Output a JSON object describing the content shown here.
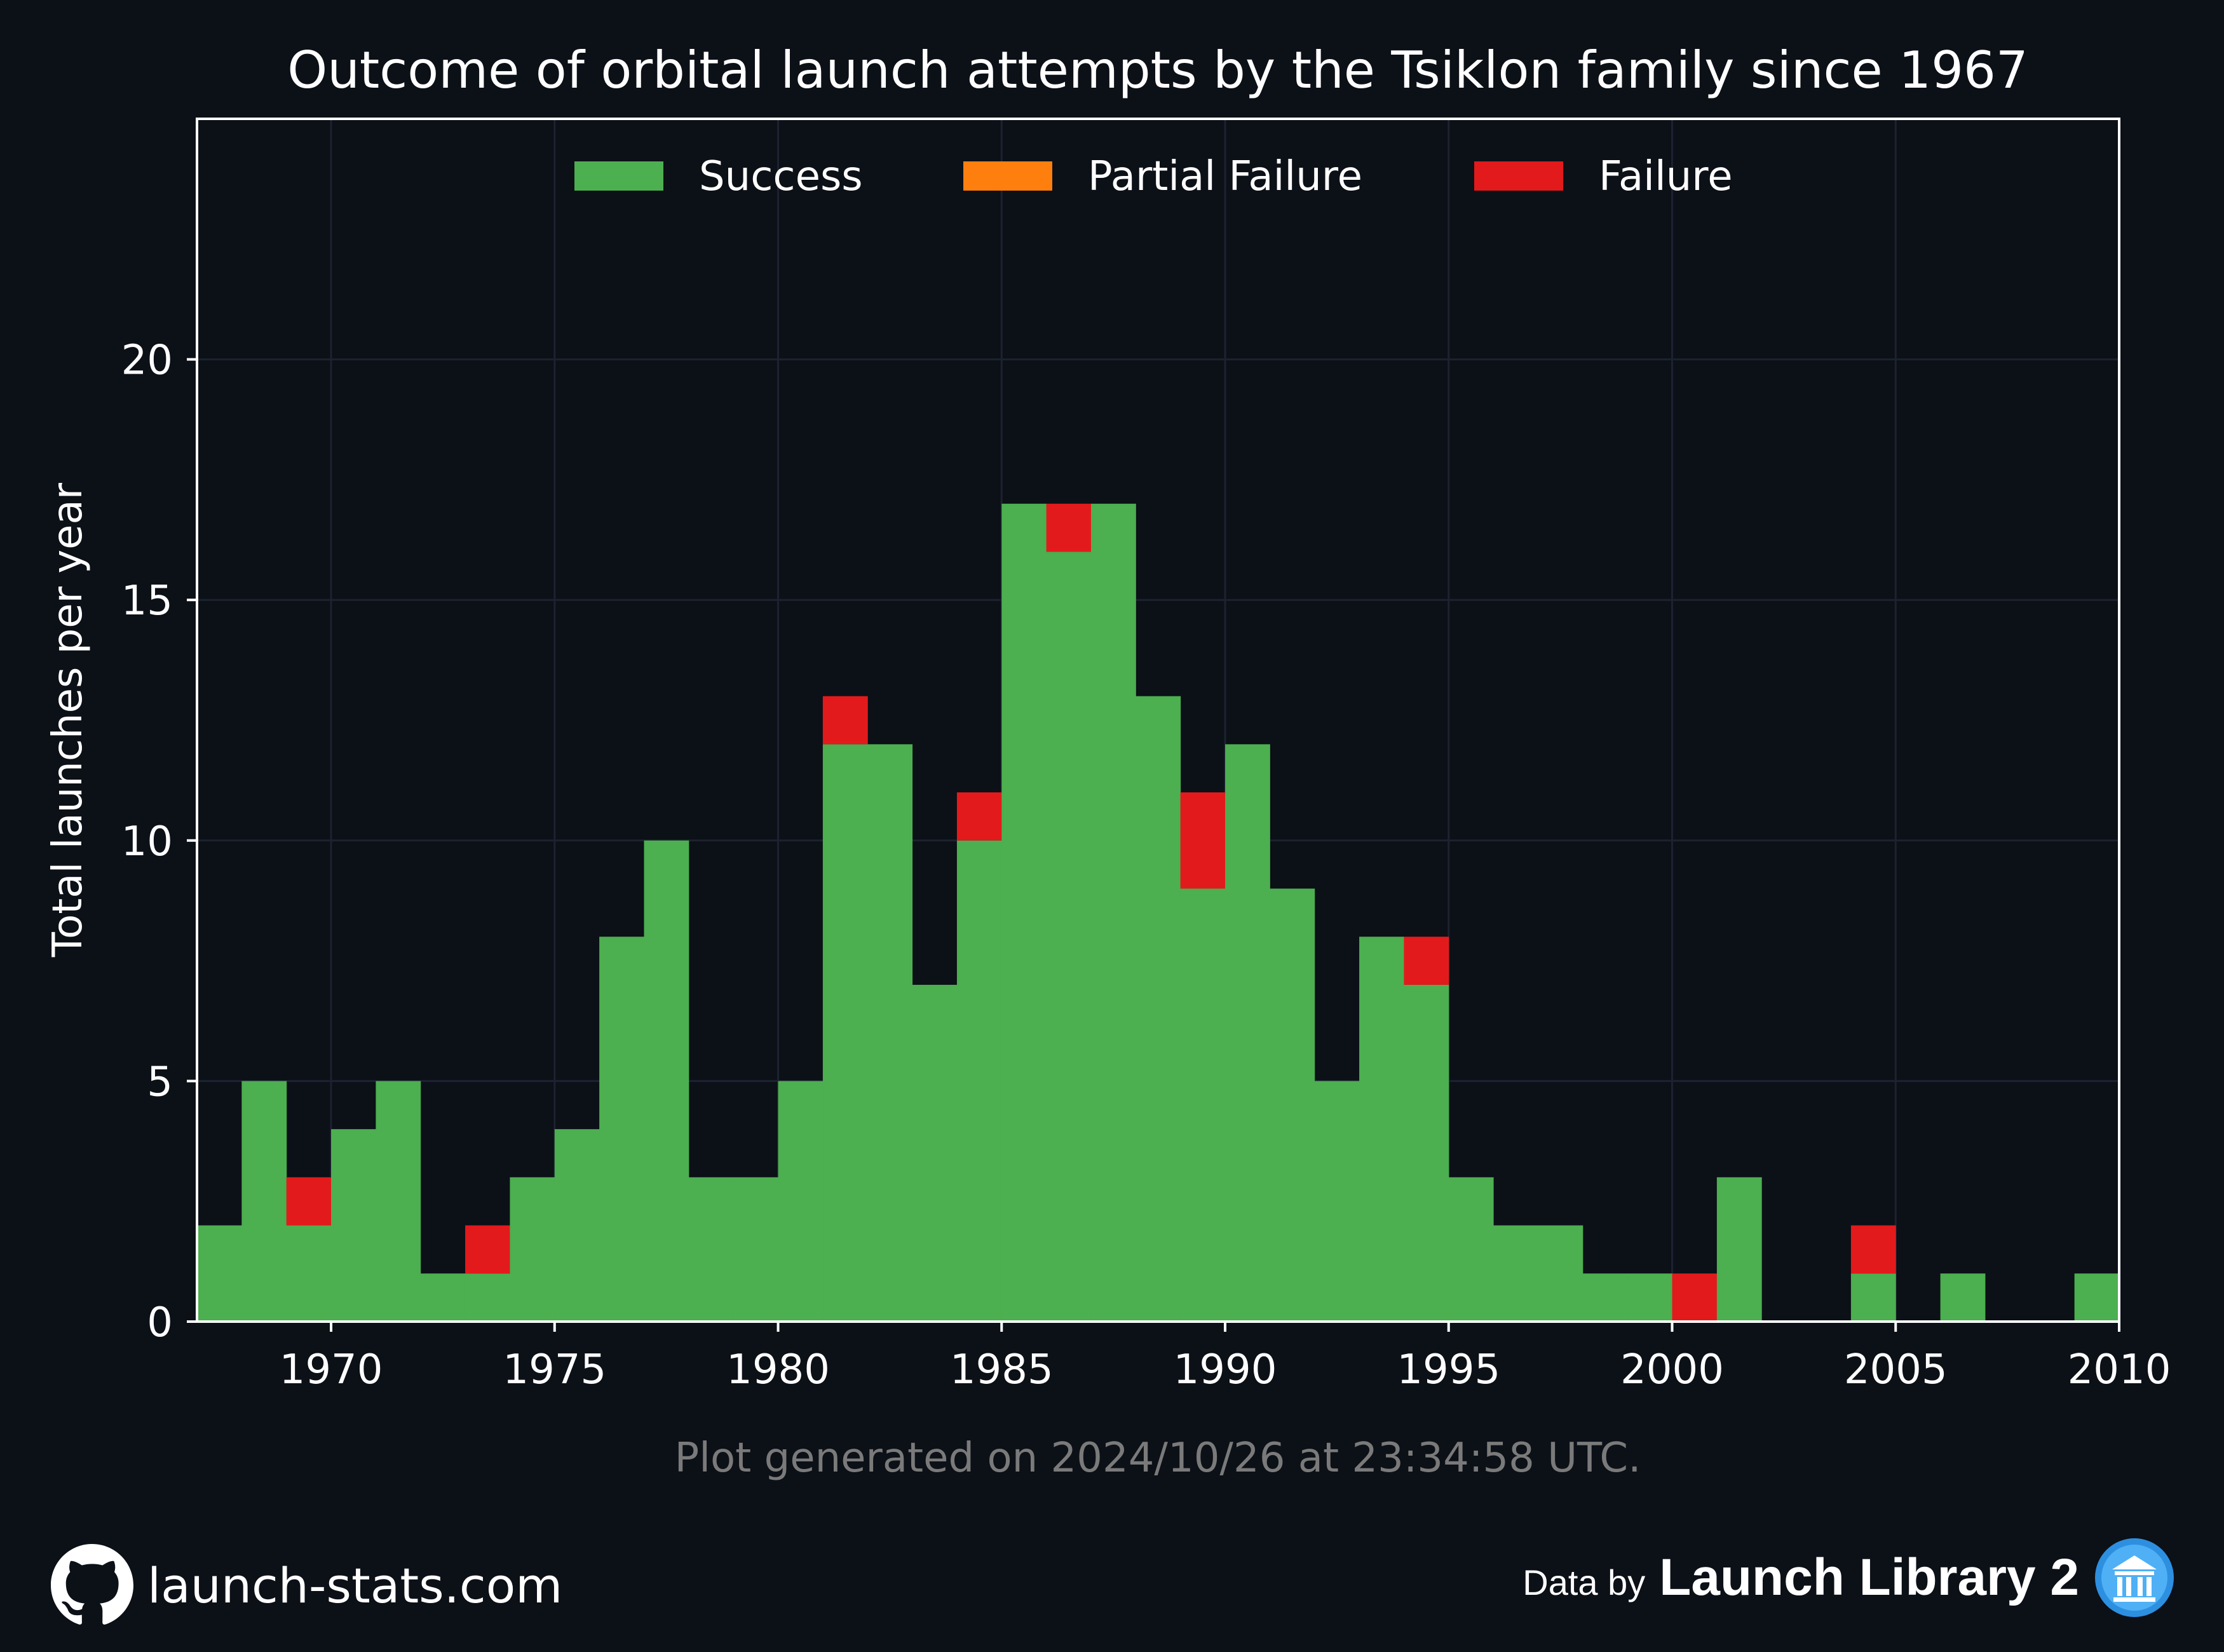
{
  "chart_data": {
    "type": "bar",
    "stacked": true,
    "title": "Outcome of orbital launch attempts by the Tsiklon family since 1967",
    "ylabel": "Total launches per year",
    "xlabel": "",
    "xlim": [
      1967,
      2010
    ],
    "ylim": [
      0,
      25
    ],
    "x_ticks": [
      1970,
      1975,
      1980,
      1985,
      1990,
      1995,
      2000,
      2005,
      2010
    ],
    "y_ticks": [
      0,
      5,
      10,
      15,
      20
    ],
    "grid": true,
    "legend_position": "top-center",
    "x": [
      1967,
      1968,
      1969,
      1970,
      1971,
      1972,
      1973,
      1974,
      1975,
      1976,
      1977,
      1978,
      1979,
      1980,
      1981,
      1982,
      1983,
      1984,
      1985,
      1986,
      1987,
      1988,
      1989,
      1990,
      1991,
      1992,
      1993,
      1994,
      1995,
      1996,
      1997,
      1998,
      1999,
      2000,
      2001,
      2002,
      2003,
      2004,
      2005,
      2006,
      2007,
      2008,
      2009
    ],
    "series": [
      {
        "name": "Success",
        "color": "#4caf50",
        "values": [
          2,
          5,
          2,
          4,
          5,
          1,
          1,
          3,
          4,
          8,
          10,
          3,
          3,
          5,
          12,
          12,
          7,
          10,
          17,
          16,
          17,
          13,
          9,
          12,
          9,
          5,
          8,
          7,
          3,
          2,
          2,
          1,
          1,
          0,
          3,
          0,
          0,
          1,
          0,
          1,
          0,
          0,
          1
        ]
      },
      {
        "name": "Partial Failure",
        "color": "#ff7f0e",
        "values": [
          0,
          0,
          0,
          0,
          0,
          0,
          0,
          0,
          0,
          0,
          0,
          0,
          0,
          0,
          0,
          0,
          0,
          0,
          0,
          0,
          0,
          0,
          0,
          0,
          0,
          0,
          0,
          0,
          0,
          0,
          0,
          0,
          0,
          0,
          0,
          0,
          0,
          0,
          0,
          0,
          0,
          0,
          0
        ]
      },
      {
        "name": "Failure",
        "color": "#e31a1c",
        "values": [
          0,
          0,
          1,
          0,
          0,
          0,
          1,
          0,
          0,
          0,
          0,
          0,
          0,
          0,
          1,
          0,
          0,
          1,
          0,
          1,
          0,
          0,
          2,
          0,
          0,
          0,
          0,
          1,
          0,
          0,
          0,
          0,
          0,
          1,
          0,
          0,
          0,
          1,
          0,
          0,
          0,
          0,
          0
        ]
      }
    ],
    "note": "Plot generated on 2024/10/26 at 23:34:58 UTC."
  },
  "footer": {
    "site": "launch-stats.com",
    "data_prefix": "Data by",
    "data_source": "Launch Library 2",
    "left_icon": "github-icon",
    "right_icon": "library-icon"
  },
  "colors": {
    "background": "#0c1017",
    "grid": "#1c2230",
    "axis": "#ffffff",
    "note": "#7a7a7a"
  }
}
